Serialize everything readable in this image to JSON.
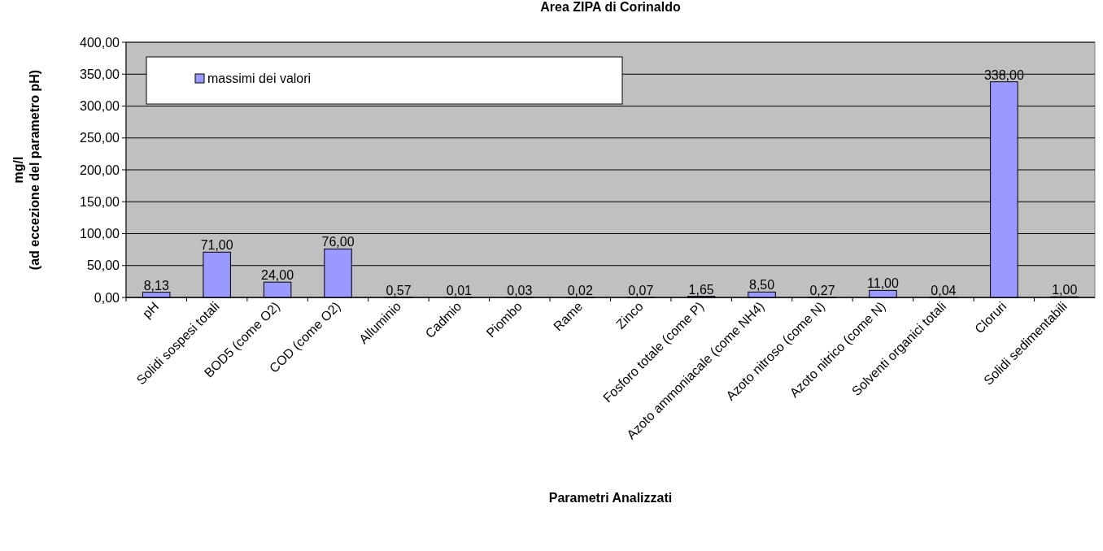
{
  "chart_data": {
    "type": "bar",
    "title": "Area ZIPA di Corinaldo",
    "xlabel": "Parametri Analizzati",
    "ylabel": "mg/l\n(ad eccezione del parametro pH)",
    "categories": [
      "pH",
      "Solidi sospesi totali",
      "BOD5 (come O2)",
      "COD (come O2)",
      "Alluminio",
      "Cadmio",
      "Piombo",
      "Rame",
      "Zinco",
      "Fosforo totale (come P)",
      "Azoto ammoniacale (come NH4)",
      "Azoto nitroso (come N)",
      "Azoto nitrico (come N)",
      "Solventi organici totali",
      "Cloruri",
      "Solidi sedimentabili"
    ],
    "series": [
      {
        "name": "massimi dei valori",
        "color": "#9999ff",
        "values": [
          8.13,
          71,
          24,
          76,
          0.57,
          0.01,
          0.03,
          0.02,
          0.07,
          1.65,
          8.5,
          0.27,
          11,
          0.04,
          338,
          1
        ],
        "value_labels": [
          "8,13",
          "71,00",
          "24,00",
          "76,00",
          "0,57",
          "0,01",
          "0,03",
          "0,02",
          "0,07",
          "1,65",
          "8,50",
          "0,27",
          "11,00",
          "0,04",
          "338,00",
          "1,00"
        ]
      }
    ],
    "ylim": [
      0,
      400
    ],
    "yticks": [
      {
        "value": 0,
        "label": "0,00"
      },
      {
        "value": 50,
        "label": "50,00"
      },
      {
        "value": 100,
        "label": "100,00"
      },
      {
        "value": 150,
        "label": "150,00"
      },
      {
        "value": 200,
        "label": "200,00"
      },
      {
        "value": 250,
        "label": "250,00"
      },
      {
        "value": 300,
        "label": "300,00"
      },
      {
        "value": 350,
        "label": "350,00"
      },
      {
        "value": 400,
        "label": "400,00"
      }
    ],
    "grid": "y",
    "legend": "top left"
  }
}
